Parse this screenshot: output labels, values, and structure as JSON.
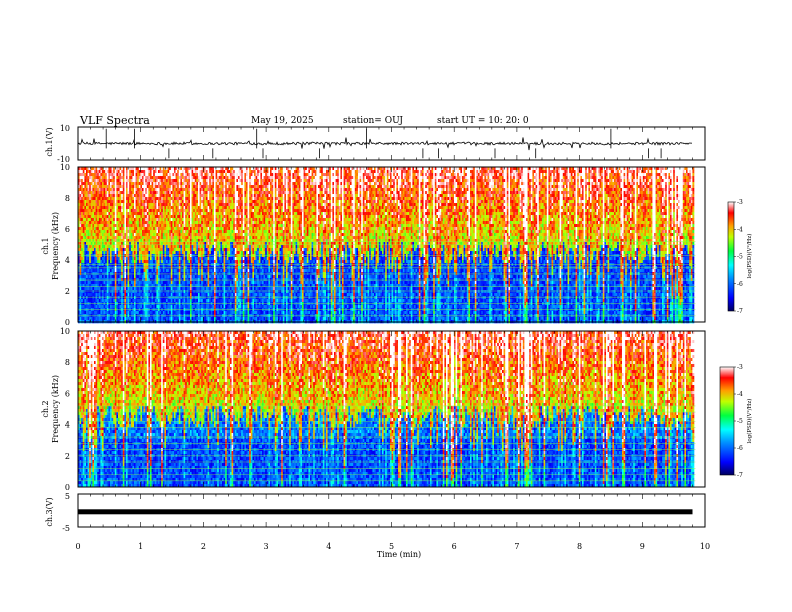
{
  "header": {
    "title": "VLF Spectra",
    "date": "May 19, 2025",
    "station": "station= OUJ",
    "start": "start  UT =   10: 20: 0"
  },
  "chart_data": [
    {
      "type": "line",
      "name": "ch1-waveform",
      "ylabel": "ch.1(V)",
      "ylim": [
        -10,
        10
      ],
      "yticks": [
        "10",
        "-10"
      ],
      "xlim": [
        0,
        10
      ],
      "baseline": 0,
      "color": "#000000"
    },
    {
      "type": "heatmap",
      "name": "ch1-spectrogram",
      "ylabel": "ch.1\nFrequency (kHz)",
      "ylim": [
        0,
        10
      ],
      "yticks": [
        "0",
        "2",
        "4",
        "6",
        "8",
        "10"
      ],
      "xlim": [
        0,
        9.85
      ],
      "colorbar": {
        "label": "log(PSD)(V²/Hz)",
        "range": [
          -7,
          -3
        ],
        "ticks": [
          "-3",
          "-4",
          "-5",
          "-6",
          "-7"
        ]
      }
    },
    {
      "type": "heatmap",
      "name": "ch2-spectrogram",
      "ylabel": "ch.2\nFrequency (kHz)",
      "ylim": [
        0,
        10
      ],
      "yticks": [
        "0",
        "2",
        "4",
        "6",
        "8",
        "10"
      ],
      "xlim": [
        0,
        9.85
      ],
      "colorbar": {
        "label": "log(PSD)(V²/Hz)",
        "range": [
          -7,
          -3
        ],
        "ticks": [
          "-3",
          "-4",
          "-5",
          "-6",
          "-7"
        ]
      }
    },
    {
      "type": "line",
      "name": "ch3-waveform",
      "ylabel": "ch.3(V)",
      "ylim": [
        -5,
        5
      ],
      "yticks": [
        "5",
        "-5"
      ],
      "xlim": [
        0,
        10
      ],
      "baseline": -0.4,
      "color": "#000000"
    }
  ],
  "xaxis": {
    "label": "Time (min)",
    "ticks": [
      "0",
      "1",
      "2",
      "3",
      "4",
      "5",
      "6",
      "7",
      "8",
      "9",
      "10"
    ],
    "range": [
      0,
      10
    ]
  },
  "colors": {
    "colormap": [
      "#000080",
      "#0000ff",
      "#00a0ff",
      "#00ffff",
      "#00ff00",
      "#ffff00",
      "#ff8000",
      "#ff0000",
      "#ffffff"
    ]
  }
}
